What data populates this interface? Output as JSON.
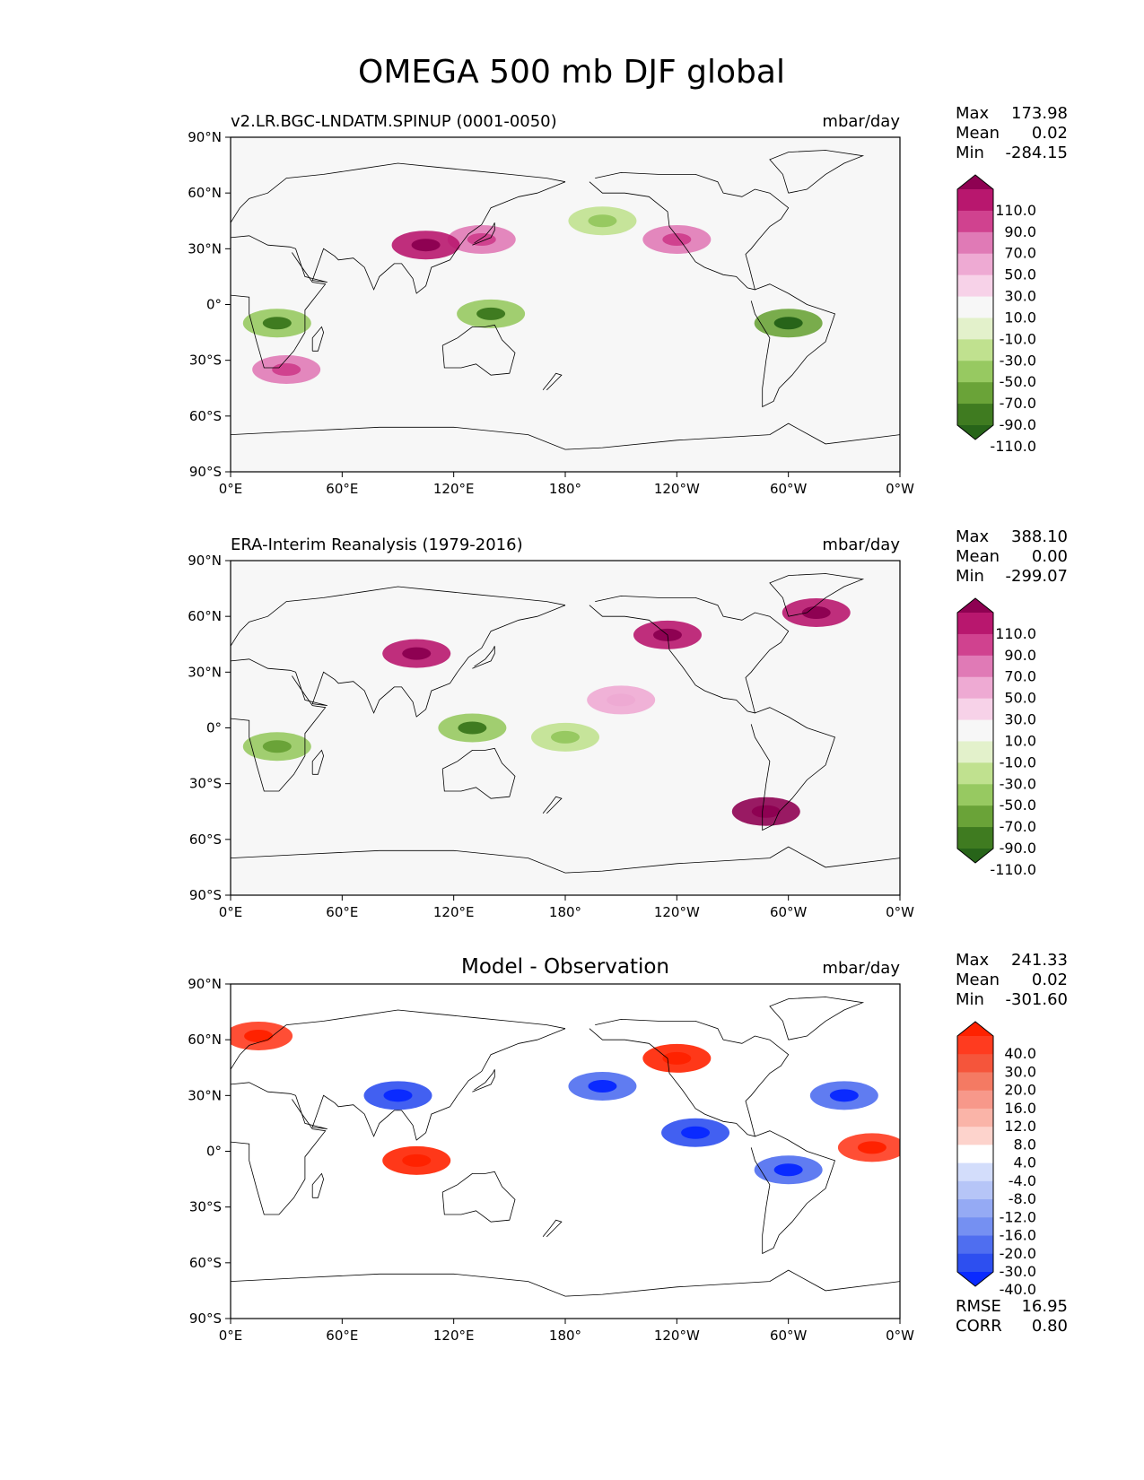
{
  "figure": {
    "title": "OMEGA 500 mb DJF global"
  },
  "panels": [
    {
      "id": "model",
      "left_title": "v2.LR.BGC-LNDATM.SPINUP (0001-0050)",
      "center_title": "",
      "units": "mbar/day",
      "stats": [
        {
          "label": "Max",
          "value": "173.98"
        },
        {
          "label": "Mean",
          "value": "0.02"
        },
        {
          "label": "Min",
          "value": "-284.15"
        }
      ],
      "colorbar_labels": [
        "110.0",
        "90.0",
        "70.0",
        "50.0",
        "30.0",
        "10.0",
        "-10.0",
        "-30.0",
        "-50.0",
        "-70.0",
        "-90.0",
        "-110.0"
      ],
      "colorbar_colors": [
        "#8e0152",
        "#b8176e",
        "#d0428f",
        "#e07ab6",
        "#eeaad3",
        "#f7d2e8",
        "#f7f7f7",
        "#e3f1cb",
        "#c0e18f",
        "#97c961",
        "#6aa338",
        "#3f7b20",
        "#276419"
      ]
    },
    {
      "id": "obs",
      "left_title": "ERA-Interim Reanalysis (1979-2016)",
      "center_title": "",
      "units": "mbar/day",
      "stats": [
        {
          "label": "Max",
          "value": "388.10"
        },
        {
          "label": "Mean",
          "value": "0.00"
        },
        {
          "label": "Min",
          "value": "-299.07"
        }
      ],
      "colorbar_labels": [
        "110.0",
        "90.0",
        "70.0",
        "50.0",
        "30.0",
        "10.0",
        "-10.0",
        "-30.0",
        "-50.0",
        "-70.0",
        "-90.0",
        "-110.0"
      ],
      "colorbar_colors": [
        "#8e0152",
        "#b8176e",
        "#d0428f",
        "#e07ab6",
        "#eeaad3",
        "#f7d2e8",
        "#f7f7f7",
        "#e3f1cb",
        "#c0e18f",
        "#97c961",
        "#6aa338",
        "#3f7b20",
        "#276419"
      ]
    },
    {
      "id": "diff",
      "left_title": "",
      "center_title": "Model - Observation",
      "units": "mbar/day",
      "stats": [
        {
          "label": "Max",
          "value": "241.33"
        },
        {
          "label": "Mean",
          "value": "0.02"
        },
        {
          "label": "Min",
          "value": "-301.60"
        }
      ],
      "extra_stats": [
        {
          "label": "RMSE",
          "value": "16.95"
        },
        {
          "label": "CORR",
          "value": "0.80"
        }
      ],
      "colorbar_labels": [
        "40.0",
        "30.0",
        "20.0",
        "16.0",
        "12.0",
        "8.0",
        "4.0",
        "-4.0",
        "-8.0",
        "-12.0",
        "-16.0",
        "-20.0",
        "-30.0",
        "-40.0"
      ],
      "colorbar_colors": [
        "#ff2200",
        "#ff3b1f",
        "#f5553b",
        "#f47a63",
        "#f7988a",
        "#fab4a8",
        "#fdd3cc",
        "#ffffff",
        "#d3ddfb",
        "#b6c5f7",
        "#95aaf4",
        "#7590f2",
        "#4f6ef0",
        "#2d4ff0",
        "#0a2aff"
      ]
    }
  ],
  "axes": {
    "x_ticks": [
      "0°E",
      "60°E",
      "120°E",
      "180°",
      "120°W",
      "60°W",
      "0°W"
    ],
    "y_ticks": [
      "90°N",
      "60°N",
      "30°N",
      "0°",
      "30°S",
      "60°S",
      "90°S"
    ]
  },
  "chart_data": [
    {
      "type": "heatmap",
      "title": "v2.LR.BGC-LNDATM.SPINUP (0001-0050)",
      "units": "mbar/day",
      "x_range": [
        0,
        360
      ],
      "y_range": [
        -90,
        90
      ],
      "levels": [
        -110,
        -90,
        -70,
        -50,
        -30,
        -10,
        10,
        30,
        50,
        70,
        90,
        110
      ],
      "summary": {
        "max": 173.98,
        "mean": 0.02,
        "min": -284.15
      },
      "features": [
        {
          "lon": 135,
          "lat": 35,
          "value": 60
        },
        {
          "lon": 105,
          "lat": 32,
          "value": 90
        },
        {
          "lon": 240,
          "lat": 35,
          "value": 50
        },
        {
          "lon": 30,
          "lat": -35,
          "value": 50
        },
        {
          "lon": 140,
          "lat": -5,
          "value": -70
        },
        {
          "lon": 300,
          "lat": -10,
          "value": -80
        },
        {
          "lon": 25,
          "lat": -10,
          "value": -70
        },
        {
          "lon": 200,
          "lat": 45,
          "value": -40
        }
      ]
    },
    {
      "type": "heatmap",
      "title": "ERA-Interim Reanalysis (1979-2016)",
      "units": "mbar/day",
      "x_range": [
        0,
        360
      ],
      "y_range": [
        -90,
        90
      ],
      "levels": [
        -110,
        -90,
        -70,
        -50,
        -30,
        -10,
        10,
        30,
        50,
        70,
        90,
        110
      ],
      "summary": {
        "max": 388.1,
        "mean": 0.0,
        "min": -299.07
      },
      "features": [
        {
          "lon": 100,
          "lat": 40,
          "value": 100
        },
        {
          "lon": 235,
          "lat": 50,
          "value": 100
        },
        {
          "lon": 315,
          "lat": 62,
          "value": 90
        },
        {
          "lon": 288,
          "lat": -45,
          "value": 110
        },
        {
          "lon": 130,
          "lat": 0,
          "value": -70
        },
        {
          "lon": 180,
          "lat": -5,
          "value": -50
        },
        {
          "lon": 25,
          "lat": -10,
          "value": -60
        },
        {
          "lon": 210,
          "lat": 15,
          "value": 30
        }
      ]
    },
    {
      "type": "heatmap",
      "title": "Model - Observation",
      "units": "mbar/day",
      "x_range": [
        0,
        360
      ],
      "y_range": [
        -90,
        90
      ],
      "levels": [
        -40,
        -30,
        -20,
        -16,
        -12,
        -8,
        -4,
        4,
        8,
        12,
        16,
        20,
        30,
        40
      ],
      "summary": {
        "max": 241.33,
        "mean": 0.02,
        "min": -301.6,
        "rmse": 16.95,
        "corr": 0.8
      },
      "features": [
        {
          "lon": 90,
          "lat": 30,
          "value": -40
        },
        {
          "lon": 200,
          "lat": 35,
          "value": -30
        },
        {
          "lon": 330,
          "lat": 30,
          "value": -30
        },
        {
          "lon": 100,
          "lat": -5,
          "value": 40
        },
        {
          "lon": 300,
          "lat": -10,
          "value": -30
        },
        {
          "lon": 15,
          "lat": 62,
          "value": 30
        },
        {
          "lon": 240,
          "lat": 50,
          "value": 40
        },
        {
          "lon": 250,
          "lat": 10,
          "value": -40
        },
        {
          "lon": 345,
          "lat": 2,
          "value": 30
        }
      ]
    }
  ]
}
